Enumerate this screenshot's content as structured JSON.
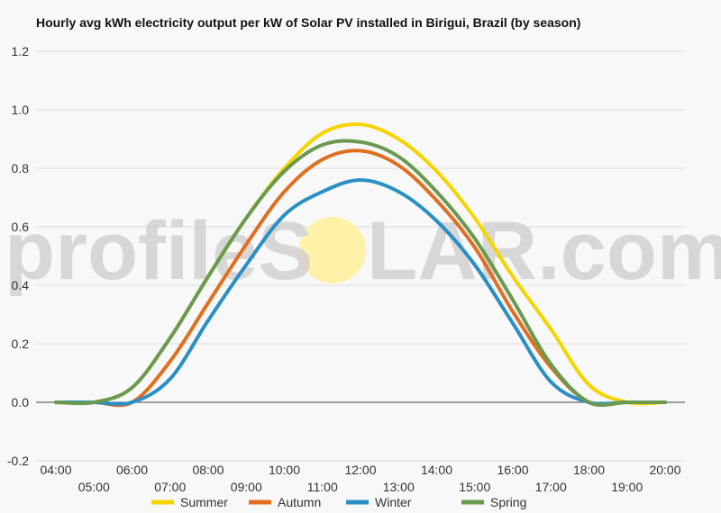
{
  "chart_data": {
    "type": "line",
    "title": "Hourly avg kWh electricity output per kW of Solar PV installed in Birigui, Brazil (by season)",
    "xlabel": "",
    "ylabel": "",
    "x": [
      "04:00",
      "05:00",
      "06:00",
      "07:00",
      "08:00",
      "09:00",
      "10:00",
      "11:00",
      "12:00",
      "13:00",
      "14:00",
      "15:00",
      "16:00",
      "17:00",
      "18:00",
      "19:00",
      "20:00"
    ],
    "ylim": [
      -0.2,
      1.2
    ],
    "yticks": [
      "1.2",
      "1.0",
      "0.8",
      "0.6",
      "0.4",
      "0.2",
      "0.0",
      "-0.2"
    ],
    "grid": true,
    "legend_position": "bottom",
    "series": [
      {
        "name": "Summer",
        "color": "#f5d400",
        "values": [
          0,
          0,
          0.05,
          0.22,
          0.43,
          0.63,
          0.8,
          0.92,
          0.95,
          0.9,
          0.79,
          0.63,
          0.43,
          0.25,
          0.06,
          0,
          0
        ]
      },
      {
        "name": "Autumn",
        "color": "#e07020",
        "values": [
          0,
          0,
          0,
          0.14,
          0.34,
          0.54,
          0.72,
          0.83,
          0.86,
          0.81,
          0.69,
          0.53,
          0.31,
          0.12,
          0,
          0,
          0
        ]
      },
      {
        "name": "Winter",
        "color": "#2a8fc4",
        "values": [
          0,
          0,
          0,
          0.08,
          0.28,
          0.47,
          0.64,
          0.72,
          0.76,
          0.72,
          0.62,
          0.47,
          0.27,
          0.07,
          0,
          0,
          0
        ]
      },
      {
        "name": "Spring",
        "color": "#6a9a50",
        "values": [
          0,
          0,
          0.05,
          0.22,
          0.43,
          0.63,
          0.79,
          0.88,
          0.89,
          0.84,
          0.72,
          0.56,
          0.35,
          0.13,
          0,
          0,
          0
        ]
      }
    ]
  },
  "watermark": {
    "text_left": "profileS",
    "text_right": "LAR.com",
    "sun_color": "#fff1a8"
  }
}
